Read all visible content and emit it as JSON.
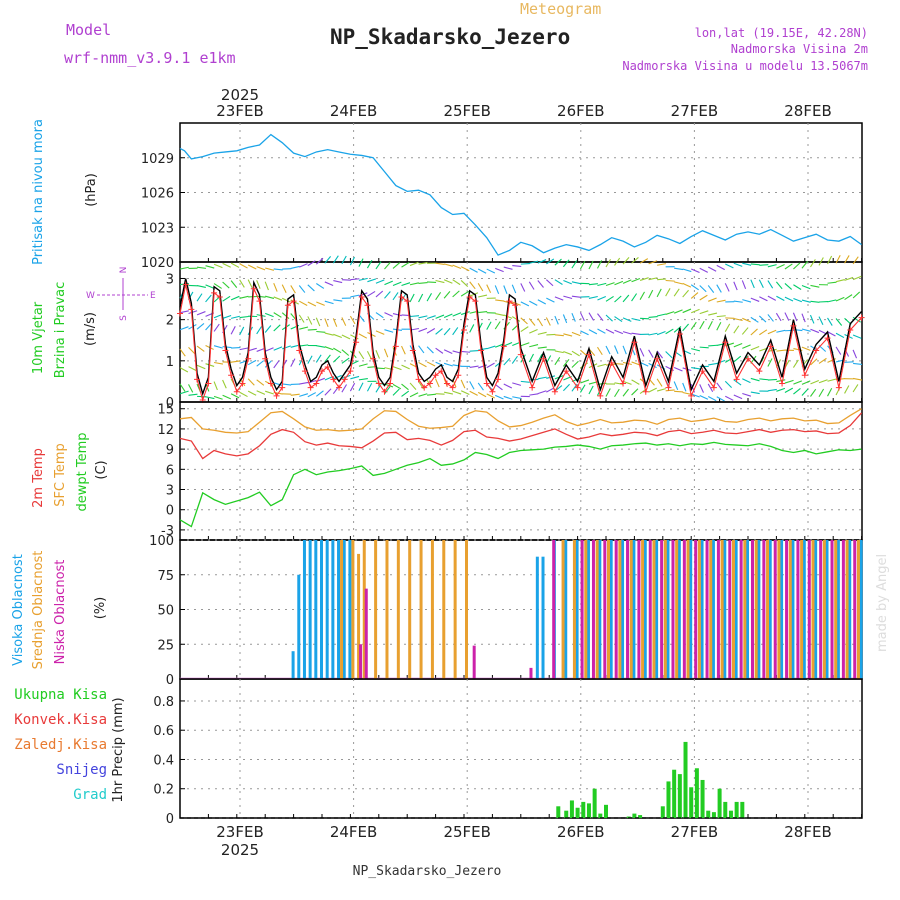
{
  "header": {
    "model_label": "Model",
    "model_name": "wrf-nmm_v3.9.1 e1km",
    "product": "Meteogram",
    "station": "NP_Skadarsko_Jezero",
    "lonlat": "lon,lat (19.15E, 42.28N)",
    "elevation": "Nadmorska Visina 2m",
    "model_elevation": "Nadmorska Visina u modelu 13.5067m",
    "watermark": "made by Angel",
    "footer_station": "NP_Skadarsko_Jezero"
  },
  "time_axis": {
    "year": "2025",
    "days": [
      "23FEB",
      "24FEB",
      "25FEB",
      "26FEB",
      "27FEB",
      "28FEB"
    ]
  },
  "colors": {
    "pressure": "#1aa3e8",
    "wind_speed": "#000000",
    "wind_gust_markers": "#ff3333",
    "temp2m": "#e83a3a",
    "sfc_temp": "#e8a030",
    "dewpoint": "#22cc22",
    "cloud_high": "#1aa3e8",
    "cloud_mid": "#e8a030",
    "cloud_low": "#cc22aa",
    "precip_total": "#22cc22",
    "label_purple": "#b040d0"
  },
  "chart_data": [
    {
      "type": "line",
      "panel": "pressure",
      "ylabel_name": "Pritisak na nivou mora",
      "ylabel_unit": "(hPa)",
      "yticks": [
        "1020",
        "1023",
        "1026",
        "1029"
      ],
      "ylim": [
        1020,
        1032
      ],
      "x_days": [
        0,
        0.04,
        0.1,
        0.2,
        0.3,
        0.4,
        0.5,
        0.6,
        0.7,
        0.8,
        0.9,
        1.0,
        1.1,
        1.2,
        1.3,
        1.4,
        1.5,
        1.6,
        1.7,
        1.8,
        1.9,
        2.0,
        2.1,
        2.2,
        2.3,
        2.4,
        2.5,
        2.6,
        2.7,
        2.8,
        2.9,
        3.0,
        3.1,
        3.2,
        3.3,
        3.4,
        3.5,
        3.6,
        3.7,
        3.8,
        3.9,
        4.0,
        4.1,
        4.2,
        4.3,
        4.4,
        4.5,
        4.6,
        4.7,
        4.8,
        4.9,
        5.0,
        5.1,
        5.2,
        5.3,
        5.4,
        5.5,
        5.6,
        5.7,
        5.8,
        5.9,
        6.0
      ],
      "values": [
        1029.8,
        1029.6,
        1028.9,
        1029.1,
        1029.4,
        1029.5,
        1029.6,
        1029.9,
        1030.1,
        1031.0,
        1030.3,
        1029.4,
        1029.1,
        1029.5,
        1029.7,
        1029.5,
        1029.3,
        1029.2,
        1029.0,
        1027.8,
        1026.6,
        1026.1,
        1026.2,
        1025.8,
        1024.7,
        1024.1,
        1024.2,
        1023.2,
        1022.1,
        1020.6,
        1021.0,
        1021.7,
        1021.4,
        1020.8,
        1021.2,
        1021.5,
        1021.3,
        1021.0,
        1021.5,
        1022.1,
        1021.8,
        1021.3,
        1021.7,
        1022.3,
        1022.0,
        1021.6,
        1022.2,
        1022.7,
        1022.3,
        1021.9,
        1022.4,
        1022.6,
        1022.4,
        1022.8,
        1022.3,
        1021.8,
        1022.1,
        1022.4,
        1021.9,
        1021.8,
        1022.2,
        1021.5
      ]
    },
    {
      "type": "line",
      "panel": "wind",
      "ylabel_name": "10m Vjetar",
      "ylabel_name2": "Brzina i Pravac",
      "ylabel_unit": "(m/s)",
      "compass": {
        "n": "N",
        "s": "S",
        "e": "E",
        "w": "W"
      },
      "yticks": [
        "0",
        "1",
        "2",
        "3"
      ],
      "ylim": [
        0,
        3.4
      ],
      "x_days": [
        0,
        0.05,
        0.1,
        0.15,
        0.2,
        0.25,
        0.3,
        0.35,
        0.4,
        0.45,
        0.5,
        0.55,
        0.6,
        0.65,
        0.7,
        0.75,
        0.8,
        0.85,
        0.9,
        0.95,
        1.0,
        1.05,
        1.1,
        1.15,
        1.2,
        1.25,
        1.3,
        1.35,
        1.4,
        1.45,
        1.5,
        1.55,
        1.6,
        1.65,
        1.7,
        1.75,
        1.8,
        1.85,
        1.9,
        1.95,
        2.0,
        2.05,
        2.1,
        2.15,
        2.2,
        2.25,
        2.3,
        2.35,
        2.4,
        2.45,
        2.5,
        2.55,
        2.6,
        2.65,
        2.7,
        2.75,
        2.8,
        2.85,
        2.9,
        2.95,
        3.0,
        3.1,
        3.2,
        3.3,
        3.4,
        3.5,
        3.6,
        3.7,
        3.8,
        3.9,
        4.0,
        4.1,
        4.2,
        4.3,
        4.4,
        4.5,
        4.6,
        4.7,
        4.8,
        4.9,
        5.0,
        5.1,
        5.2,
        5.3,
        5.4,
        5.5,
        5.6,
        5.7,
        5.8,
        5.9,
        6.0
      ],
      "values": [
        2.3,
        3.0,
        2.4,
        0.7,
        0.2,
        0.6,
        2.8,
        2.7,
        1.4,
        0.8,
        0.4,
        0.6,
        1.2,
        2.9,
        2.6,
        1.2,
        0.6,
        0.3,
        0.5,
        2.5,
        2.6,
        1.4,
        0.9,
        0.5,
        0.6,
        0.9,
        1.0,
        0.7,
        0.5,
        0.7,
        0.9,
        1.6,
        2.7,
        2.5,
        1.2,
        0.6,
        0.4,
        0.6,
        1.5,
        2.7,
        2.6,
        1.4,
        0.7,
        0.5,
        0.6,
        0.8,
        0.9,
        0.6,
        0.5,
        0.8,
        1.9,
        2.7,
        2.6,
        1.4,
        0.6,
        0.4,
        0.7,
        1.5,
        2.6,
        2.5,
        1.3,
        0.5,
        1.2,
        0.4,
        0.9,
        0.5,
        1.3,
        0.3,
        1.1,
        0.6,
        1.6,
        0.4,
        1.2,
        0.5,
        1.8,
        0.3,
        0.9,
        0.5,
        1.6,
        0.7,
        1.2,
        0.9,
        1.5,
        0.6,
        2.0,
        0.8,
        1.4,
        1.7,
        0.5,
        1.9,
        2.2
      ]
    },
    {
      "type": "line",
      "panel": "temperature",
      "ylabel_names": [
        "2m Temp",
        "SFC Temp",
        "dewpt Temp"
      ],
      "ylabel_unit": "(C)",
      "yticks": [
        "-3",
        "0",
        "3",
        "6",
        "9",
        "12",
        "15"
      ],
      "ylim": [
        -4.5,
        16
      ],
      "x_days": [
        0,
        0.1,
        0.2,
        0.3,
        0.4,
        0.5,
        0.6,
        0.7,
        0.8,
        0.9,
        1.0,
        1.1,
        1.2,
        1.3,
        1.4,
        1.5,
        1.6,
        1.7,
        1.8,
        1.9,
        2.0,
        2.1,
        2.2,
        2.3,
        2.4,
        2.5,
        2.6,
        2.7,
        2.8,
        2.9,
        3.0,
        3.1,
        3.2,
        3.3,
        3.4,
        3.5,
        3.6,
        3.7,
        3.8,
        3.9,
        4.0,
        4.1,
        4.2,
        4.3,
        4.4,
        4.5,
        4.6,
        4.7,
        4.8,
        4.9,
        5.0,
        5.1,
        5.2,
        5.3,
        5.4,
        5.5,
        5.6,
        5.7,
        5.8,
        5.9,
        6.0
      ],
      "series": [
        {
          "name": "2m Temp",
          "values": [
            10.6,
            10.2,
            7.6,
            8.8,
            8.3,
            8.0,
            8.3,
            9.5,
            11.2,
            11.9,
            11.5,
            10.1,
            9.6,
            9.9,
            9.5,
            9.4,
            9.2,
            10.2,
            11.4,
            11.5,
            10.4,
            10.6,
            10.3,
            9.6,
            10.3,
            11.6,
            11.8,
            10.8,
            10.6,
            10.2,
            10.5,
            11.0,
            11.5,
            12.0,
            11.2,
            10.5,
            10.8,
            11.3,
            11.0,
            11.2,
            11.5,
            11.4,
            11.0,
            11.6,
            11.8,
            11.3,
            11.5,
            11.8,
            11.4,
            11.3,
            11.6,
            11.9,
            11.5,
            11.8,
            11.9,
            11.6,
            11.7,
            11.3,
            11.4,
            12.5,
            14.4
          ]
        },
        {
          "name": "SFC Temp",
          "values": [
            13.5,
            13.7,
            12.0,
            11.8,
            11.5,
            11.4,
            11.6,
            13.0,
            14.4,
            14.6,
            13.5,
            12.3,
            11.8,
            11.9,
            11.7,
            11.8,
            12.0,
            13.5,
            14.7,
            14.6,
            13.4,
            12.4,
            12.1,
            12.2,
            12.4,
            14.0,
            14.7,
            14.5,
            13.2,
            12.3,
            12.5,
            13.0,
            13.6,
            14.1,
            13.1,
            12.5,
            12.9,
            13.4,
            12.9,
            13.0,
            13.3,
            13.2,
            12.7,
            13.4,
            13.6,
            13.1,
            13.3,
            13.6,
            13.1,
            13.0,
            13.4,
            13.6,
            13.2,
            13.5,
            13.6,
            13.2,
            13.3,
            12.8,
            12.9,
            14.0,
            15.0
          ]
        },
        {
          "name": "dewpt Temp",
          "values": [
            -1.5,
            -2.5,
            2.5,
            1.5,
            0.8,
            1.3,
            1.8,
            2.6,
            0.6,
            1.5,
            5.2,
            6.0,
            5.2,
            5.6,
            5.8,
            6.1,
            6.5,
            5.1,
            5.4,
            6.0,
            6.6,
            7.0,
            7.6,
            6.6,
            6.8,
            7.4,
            8.5,
            8.2,
            7.6,
            8.5,
            8.8,
            8.9,
            9.0,
            9.3,
            9.4,
            9.6,
            9.4,
            9.0,
            9.5,
            9.6,
            9.8,
            9.9,
            9.6,
            9.8,
            9.5,
            9.8,
            9.7,
            10.0,
            9.7,
            9.6,
            9.5,
            9.8,
            9.4,
            8.8,
            8.5,
            8.8,
            8.3,
            8.6,
            8.9,
            8.8,
            9.0
          ]
        }
      ]
    },
    {
      "type": "bar",
      "panel": "cloud",
      "ylabel_names": [
        "Visoka Oblacnost",
        "Srednja Oblacnost",
        "Niska Oblacnost"
      ],
      "ylabel_unit": "(%)",
      "yticks": [
        "0",
        "25",
        "50",
        "75",
        "100"
      ],
      "ylim": [
        0,
        100
      ],
      "series": [
        {
          "name": "Visoka Oblacnost",
          "x_days": [
            1.0,
            1.05,
            1.1,
            1.15,
            1.2,
            1.25,
            1.3,
            1.35,
            1.4,
            1.45,
            1.5,
            3.15,
            3.2,
            3.3,
            3.4,
            3.5,
            3.6,
            3.7,
            3.8,
            3.9,
            4.0,
            4.1,
            4.2,
            4.3,
            4.4,
            4.5,
            4.6,
            4.7,
            4.8,
            4.9,
            5.0,
            5.1,
            5.2,
            5.3,
            5.4,
            5.5,
            5.6,
            5.7,
            5.8,
            5.9,
            6.0
          ],
          "values": [
            20,
            75,
            100,
            100,
            100,
            100,
            100,
            100,
            100,
            100,
            100,
            88,
            88,
            100,
            100,
            100,
            100,
            100,
            100,
            100,
            100,
            100,
            100,
            100,
            100,
            100,
            100,
            100,
            100,
            100,
            100,
            100,
            100,
            100,
            100,
            100,
            100,
            100,
            100,
            100,
            100
          ]
        },
        {
          "name": "Srednja Oblacnost",
          "x_days": [
            1.4,
            1.5,
            1.55,
            1.6,
            1.7,
            1.8,
            1.9,
            2.0,
            2.1,
            2.2,
            2.3,
            2.4,
            2.5,
            3.35,
            3.45,
            3.55,
            3.65,
            3.75,
            3.85,
            3.95,
            4.05,
            4.15,
            4.25,
            4.35,
            4.45,
            4.55,
            4.65,
            4.75,
            4.85,
            4.95,
            5.05,
            5.15,
            5.25,
            5.35,
            5.45,
            5.55,
            5.65,
            5.75,
            5.85,
            5.95
          ],
          "values": [
            100,
            100,
            90,
            100,
            100,
            100,
            100,
            100,
            100,
            100,
            100,
            100,
            100,
            100,
            100,
            100,
            100,
            100,
            100,
            100,
            100,
            100,
            100,
            100,
            100,
            100,
            100,
            100,
            100,
            100,
            100,
            100,
            100,
            100,
            100,
            100,
            100,
            100,
            100,
            100
          ]
        },
        {
          "name": "Niska Oblacnost",
          "x_days": [
            1.55,
            1.6,
            2.55,
            3.05,
            3.25,
            3.5,
            3.6,
            3.7,
            3.8,
            3.9,
            4.0,
            4.1,
            4.2,
            4.3,
            4.4,
            4.5,
            4.6,
            4.7,
            4.8,
            4.9,
            5.0,
            5.1,
            5.2,
            5.3,
            5.4,
            5.5,
            5.6,
            5.7,
            5.8,
            5.9
          ],
          "values": [
            25,
            65,
            24,
            8,
            100,
            100,
            100,
            100,
            100,
            100,
            100,
            100,
            100,
            100,
            100,
            100,
            100,
            100,
            100,
            100,
            100,
            100,
            100,
            100,
            100,
            100,
            100,
            100,
            100,
            100
          ]
        }
      ]
    },
    {
      "type": "bar",
      "panel": "precipitation",
      "ylabel_names": [
        "Ukupna Kisa",
        "Konvek.Kisa",
        "Zaledj.Kisa",
        "Snijeg",
        "Grad"
      ],
      "ylabel_unit": "1hr Precip (mm)",
      "yticks": [
        "0",
        "0.2",
        "0.4",
        "0.6",
        "0.8"
      ],
      "ylim": [
        0,
        0.95
      ],
      "series": [
        {
          "name": "Ukupna Kisa",
          "x_days": [
            3.33,
            3.4,
            3.45,
            3.5,
            3.55,
            3.6,
            3.65,
            3.7,
            3.75,
            3.95,
            4.0,
            4.05,
            4.25,
            4.3,
            4.35,
            4.4,
            4.45,
            4.5,
            4.55,
            4.6,
            4.65,
            4.7,
            4.75,
            4.8,
            4.85,
            4.9,
            4.95
          ],
          "values": [
            0.08,
            0.05,
            0.12,
            0.07,
            0.11,
            0.1,
            0.2,
            0.03,
            0.09,
            0.01,
            0.03,
            0.02,
            0.08,
            0.25,
            0.33,
            0.3,
            0.52,
            0.21,
            0.34,
            0.26,
            0.05,
            0.04,
            0.2,
            0.11,
            0.05,
            0.11,
            0.11
          ]
        }
      ]
    }
  ]
}
